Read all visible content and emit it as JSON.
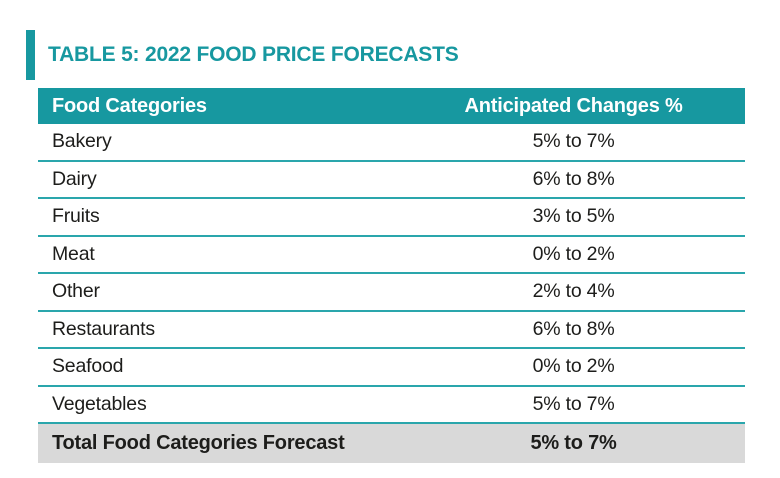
{
  "page": {
    "title": "TABLE 5: 2022 FOOD PRICE FORECASTS"
  },
  "colors": {
    "teal_accent": "#1798a0",
    "separator_teal": "#2aa6ac",
    "header_text": "#ffffff",
    "total_row_bg": "#d9d9d9",
    "body_text": "#1d1d1b",
    "background": "#ffffff"
  },
  "table": {
    "headers": [
      "Food Categories",
      "Anticipated Changes %"
    ],
    "rows": [
      {
        "category": "Bakery",
        "change": "5% to 7%"
      },
      {
        "category": "Dairy",
        "change": "6% to 8%"
      },
      {
        "category": "Fruits",
        "change": "3% to 5%"
      },
      {
        "category": "Meat",
        "change": "0% to 2%"
      },
      {
        "category": "Other",
        "change": "2% to 4%"
      },
      {
        "category": "Restaurants",
        "change": "6% to 8%"
      },
      {
        "category": "Seafood",
        "change": "0% to 2%"
      },
      {
        "category": "Vegetables",
        "change": "5% to 7%"
      }
    ],
    "total": {
      "label": "Total Food Categories Forecast",
      "change": "5% to 7%"
    }
  }
}
